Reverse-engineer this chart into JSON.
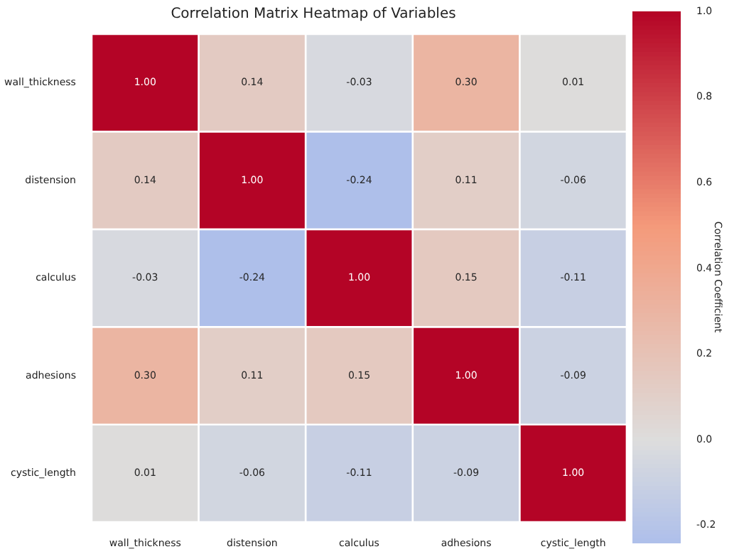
{
  "chart_data": {
    "type": "heatmap",
    "title": "Correlation Matrix Heatmap of Variables",
    "categories": [
      "wall_thickness",
      "distension",
      "calculus",
      "adhesions",
      "cystic_length"
    ],
    "y_categories": [
      "wall_thickness",
      "distension",
      "calculus",
      "adhesions",
      "cystic_length"
    ],
    "cells": [
      [
        1,
        0.14,
        -0.03,
        0.3,
        0.01
      ],
      [
        0.14,
        1,
        -0.24,
        0.11,
        -0.06
      ],
      [
        -0.03,
        -0.24,
        1,
        0.15,
        -0.11
      ],
      [
        0.3,
        0.11,
        0.15,
        1,
        -0.09
      ],
      [
        0.01,
        -0.06,
        -0.11,
        -0.09,
        1
      ]
    ],
    "cell_labels": [
      [
        "1.00",
        "0.14",
        "-0.03",
        "0.30",
        "0.01"
      ],
      [
        "0.14",
        "1.00",
        "-0.24",
        "0.11",
        "-0.06"
      ],
      [
        "-0.03",
        "-0.24",
        "1.00",
        "0.15",
        "-0.11"
      ],
      [
        "0.30",
        "0.11",
        "0.15",
        "1.00",
        "-0.09"
      ],
      [
        "0.01",
        "-0.06",
        "-0.11",
        "-0.09",
        "1.00"
      ]
    ],
    "clim": [
      -0.24,
      1
    ],
    "cticks": [
      -0.2,
      {
        "value": 0,
        "label": "0.0"
      },
      0.2,
      0.4,
      0.6,
      0.8,
      {
        "value": 1,
        "label": "1.0"
      }
    ],
    "clabel": "Correlation Coefficient"
  }
}
